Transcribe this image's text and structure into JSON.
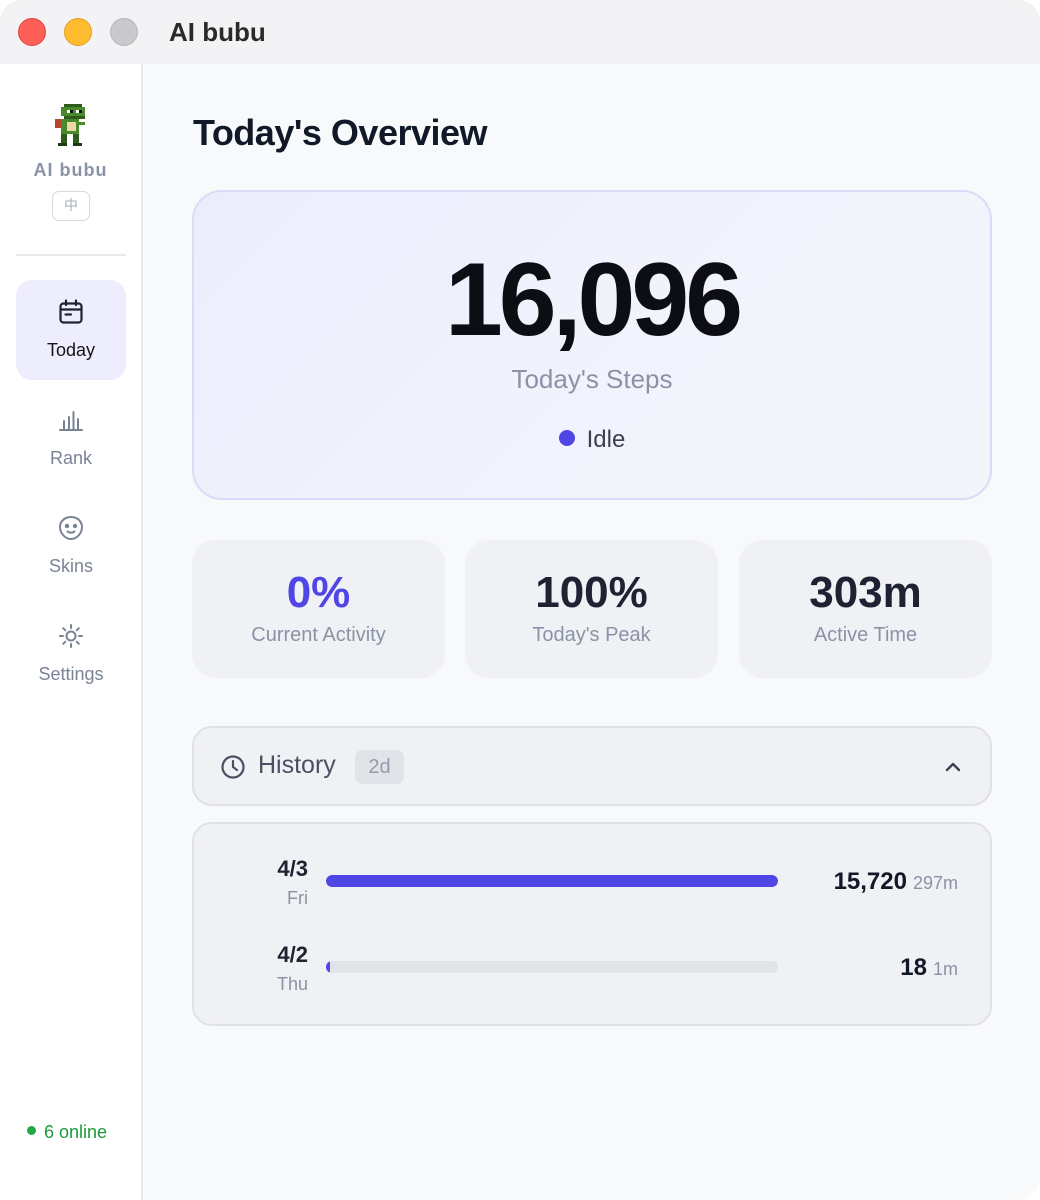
{
  "window": {
    "title": "AI bubu"
  },
  "sidebar": {
    "brand": "AI bubu",
    "lang_button": "中",
    "nav": [
      {
        "label": "Today",
        "icon": "calendar-icon",
        "active": true
      },
      {
        "label": "Rank",
        "icon": "bar-chart-icon",
        "active": false
      },
      {
        "label": "Skins",
        "icon": "face-icon",
        "active": false
      },
      {
        "label": "Settings",
        "icon": "sun-gear-icon",
        "active": false
      }
    ],
    "online": "6 online"
  },
  "main": {
    "title": "Today's Overview",
    "hero": {
      "steps": "16,096",
      "label": "Today's Steps",
      "status": "Idle"
    },
    "stats": [
      {
        "value": "0%",
        "label": "Current Activity"
      },
      {
        "value": "100%",
        "label": "Today's Peak"
      },
      {
        "value": "303m",
        "label": "Active Time"
      }
    ],
    "history": {
      "title": "History",
      "badge": "2d",
      "expanded": true,
      "rows": [
        {
          "date": "4/3",
          "day": "Fri",
          "steps": "15,720",
          "minutes": "297m",
          "fraction": 1.0
        },
        {
          "date": "4/2",
          "day": "Thu",
          "steps": "18",
          "minutes": "1m",
          "fraction": 0.001
        }
      ]
    }
  },
  "colors": {
    "accent": "#5046e5",
    "online": "#22a745"
  }
}
